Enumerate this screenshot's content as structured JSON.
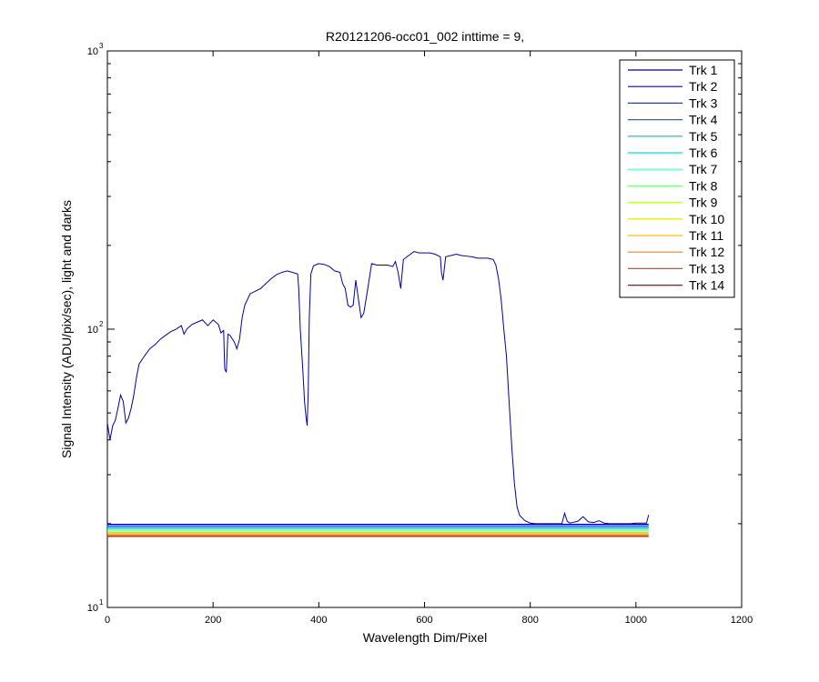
{
  "chart_data": {
    "type": "line",
    "title": "R20121206-occ01_002 inttime = 9,",
    "xlabel": "Wavelength Dim/Pixel",
    "ylabel": "Signal Intensity (ADU/pix/sec), light and darks",
    "xlim": [
      0,
      1200
    ],
    "ylim": [
      10,
      1000
    ],
    "yscale": "log",
    "x_ticks": [
      "0",
      "200",
      "400",
      "600",
      "800",
      "1000",
      "1200"
    ],
    "y_ticks": [
      {
        "base": "10",
        "exp": "1"
      },
      {
        "base": "10",
        "exp": "2"
      },
      {
        "base": "10",
        "exp": "3"
      }
    ],
    "grid": false,
    "legend_position": "top-right",
    "series": [
      {
        "name": "Trk 1",
        "color": "#0000a0",
        "x": [
          0,
          5,
          10,
          15,
          20,
          25,
          30,
          35,
          40,
          45,
          50,
          55,
          60,
          70,
          80,
          90,
          100,
          110,
          120,
          130,
          140,
          145,
          150,
          155,
          160,
          170,
          180,
          190,
          200,
          210,
          215,
          220,
          222,
          225,
          228,
          232,
          240,
          245,
          250,
          255,
          260,
          270,
          280,
          290,
          300,
          310,
          320,
          330,
          340,
          350,
          360,
          362,
          365,
          370,
          373,
          376,
          378,
          380,
          382,
          385,
          390,
          400,
          410,
          420,
          430,
          440,
          445,
          450,
          455,
          460,
          465,
          470,
          475,
          480,
          485,
          490,
          500,
          510,
          520,
          530,
          540,
          545,
          550,
          555,
          560,
          570,
          580,
          590,
          600,
          610,
          620,
          630,
          632,
          635,
          640,
          650,
          660,
          670,
          680,
          690,
          700,
          710,
          720,
          730,
          735,
          740,
          745,
          750,
          755,
          760,
          765,
          770,
          775,
          780,
          790,
          800,
          810,
          820,
          830,
          840,
          850,
          860,
          865,
          870,
          875,
          880,
          890,
          900,
          910,
          920,
          930,
          940,
          950,
          960,
          970,
          980,
          990,
          1000,
          1010,
          1020,
          1024
        ],
        "y": [
          46,
          40,
          45,
          47,
          52,
          58,
          55,
          46,
          48,
          52,
          58,
          67,
          75,
          80,
          85,
          88,
          92,
          95,
          98,
          100,
          103,
          96,
          100,
          102,
          104,
          106,
          108,
          103,
          108,
          104,
          97,
          99,
          72,
          70,
          96,
          95,
          90,
          85,
          92,
          110,
          122,
          134,
          137,
          140,
          146,
          152,
          157,
          160,
          162,
          160,
          158,
          140,
          100,
          70,
          55,
          48,
          45,
          60,
          110,
          158,
          169,
          172,
          171,
          168,
          162,
          160,
          146,
          140,
          122,
          120,
          122,
          150,
          128,
          110,
          114,
          130,
          172,
          170,
          170,
          170,
          168,
          175,
          160,
          140,
          178,
          184,
          190,
          188,
          188,
          188,
          186,
          182,
          160,
          150,
          182,
          184,
          186,
          184,
          183,
          182,
          180,
          180,
          180,
          178,
          170,
          152,
          128,
          100,
          80,
          55,
          38,
          28,
          23,
          21.4,
          20.5,
          20.1,
          20,
          20,
          20,
          20,
          20,
          20,
          21.8,
          20.4,
          20.1,
          20.2,
          20.4,
          21.2,
          20.3,
          20.2,
          20.5,
          20.1,
          20,
          20,
          20,
          20,
          20,
          20.1,
          20.1,
          20.1,
          21.5
        ]
      },
      {
        "name": "Trk 2",
        "color": "#0000c8",
        "x": [
          0,
          1024
        ],
        "y": [
          19.9,
          19.9
        ]
      },
      {
        "name": "Trk 3",
        "color": "#0040ff",
        "x": [
          0,
          1024
        ],
        "y": [
          19.7,
          19.7
        ]
      },
      {
        "name": "Trk 4",
        "color": "#007fbf",
        "x": [
          0,
          1024
        ],
        "y": [
          19.5,
          19.5
        ]
      },
      {
        "name": "Trk 5",
        "color": "#00bfbf",
        "x": [
          0,
          1024
        ],
        "y": [
          19.4,
          19.4
        ]
      },
      {
        "name": "Trk 6",
        "color": "#00e0e0",
        "x": [
          0,
          1024
        ],
        "y": [
          19.2,
          19.2
        ]
      },
      {
        "name": "Trk 7",
        "color": "#40ffbf",
        "x": [
          0,
          1024
        ],
        "y": [
          19.1,
          19.1
        ]
      },
      {
        "name": "Trk 8",
        "color": "#80ff80",
        "x": [
          0,
          1024
        ],
        "y": [
          18.9,
          18.9
        ]
      },
      {
        "name": "Trk 9",
        "color": "#bfff40",
        "x": [
          0,
          1024
        ],
        "y": [
          18.8,
          18.8
        ]
      },
      {
        "name": "Trk 10",
        "color": "#e0e000",
        "x": [
          0,
          1024
        ],
        "y": [
          18.6,
          18.6
        ]
      },
      {
        "name": "Trk 11",
        "color": "#ffbf00",
        "x": [
          0,
          1024
        ],
        "y": [
          18.5,
          18.5
        ]
      },
      {
        "name": "Trk 12",
        "color": "#ff8000",
        "x": [
          0,
          1024
        ],
        "y": [
          18.3,
          18.3
        ]
      },
      {
        "name": "Trk 13",
        "color": "#ff4000",
        "x": [
          0,
          1024
        ],
        "y": [
          18.1,
          18.1
        ]
      },
      {
        "name": "Trk 14",
        "color": "#c00000",
        "x": [
          0,
          1024
        ],
        "y": [
          18.0,
          18.0
        ]
      }
    ]
  }
}
